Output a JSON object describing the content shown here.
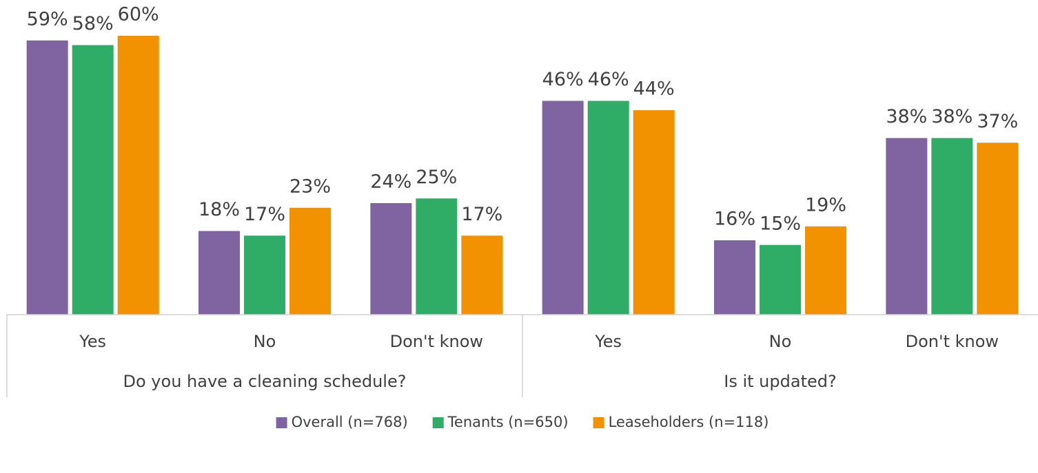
{
  "chart_data": {
    "type": "bar",
    "groups": [
      {
        "name": "Do you have a cleaning schedule?",
        "categories": [
          "Yes",
          "No",
          "Don't know"
        ]
      },
      {
        "name": "Is it updated?",
        "categories": [
          "Yes",
          "No",
          "Don't know"
        ]
      }
    ],
    "series": [
      {
        "name": "Overall (n=768)",
        "color": "#8064a2",
        "values": [
          59,
          18,
          24,
          46,
          16,
          38
        ],
        "value_labels": [
          "59%",
          "18%",
          "24%",
          "46%",
          "16%",
          "38%"
        ]
      },
      {
        "name": "Tenants (n=650)",
        "color": "#2fad66",
        "values": [
          58,
          17,
          25,
          46,
          15,
          38
        ],
        "value_labels": [
          "58%",
          "17%",
          "25%",
          "46%",
          "15%",
          "38%"
        ]
      },
      {
        "name": "Leaseholders (n=118)",
        "color": "#f39200",
        "values": [
          60,
          23,
          17,
          44,
          19,
          37
        ],
        "value_labels": [
          "60%",
          "23%",
          "17%",
          "44%",
          "19%",
          "37%"
        ]
      }
    ],
    "ylim": [
      0,
      60
    ],
    "legend": "bottom"
  }
}
